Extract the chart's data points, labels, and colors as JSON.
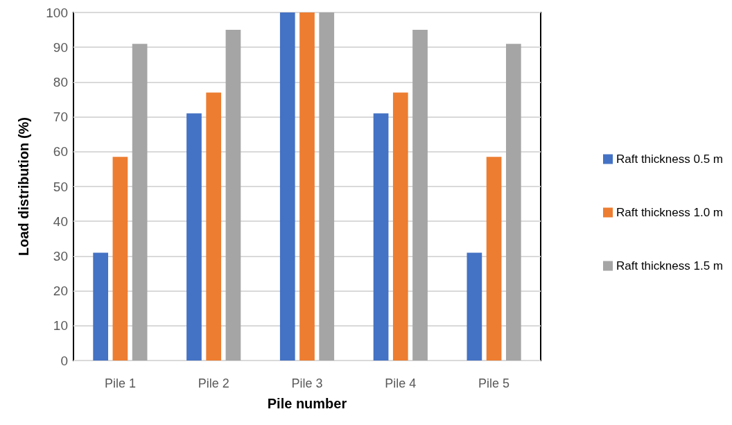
{
  "chart_data": {
    "type": "bar",
    "xlabel": "Pile number",
    "ylabel": "Load distribution (%)",
    "categories": [
      "Pile 1",
      "Pile 2",
      "Pile 3",
      "Pile 4",
      "Pile 5"
    ],
    "series": [
      {
        "name": "Raft thickness 0.5 m",
        "color": "#4472c4",
        "values": [
          31,
          71,
          100,
          71,
          31
        ]
      },
      {
        "name": "Raft thickness 1.0 m",
        "color": "#ed7d31",
        "values": [
          58.5,
          77,
          100,
          77,
          58.5
        ]
      },
      {
        "name": "Raft thickness 1.5 m",
        "color": "#a5a5a5",
        "values": [
          91,
          95,
          100,
          95,
          91
        ]
      }
    ],
    "ylim": [
      0,
      100
    ],
    "yticks": [
      0,
      10,
      20,
      30,
      40,
      50,
      60,
      70,
      80,
      90,
      100
    ],
    "grid": "y",
    "legend": "right"
  }
}
